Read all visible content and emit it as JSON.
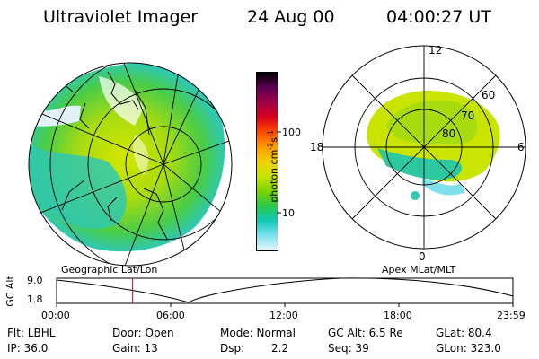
{
  "header": {
    "instrument": "Ultraviolet Imager",
    "date": "24 Aug 00",
    "time": "04:00:27 UT"
  },
  "geo_panel": {
    "label": "Geographic Lat/Lon"
  },
  "polar_panel": {
    "label": "Apex MLat/MLT",
    "mlt_labels": [
      "12",
      "18",
      "6",
      "0"
    ],
    "lat_labels": [
      "60",
      "70",
      "80"
    ]
  },
  "colorbar": {
    "unit_label": "photon cm",
    "unit_exp1": "-2",
    "unit_mid": "s",
    "unit_exp2": "-1",
    "ticks": [
      "100",
      "10"
    ],
    "colors": [
      "#000000",
      "#5a0050",
      "#a0004a",
      "#d8001c",
      "#ff4a00",
      "#ff9a00",
      "#f0d000",
      "#c8e400",
      "#7cd400",
      "#2cc84c",
      "#10c8b8",
      "#80e0ee",
      "#e8f6fb"
    ]
  },
  "altitude_plot": {
    "y_axis_label": "GC Alt",
    "y_ticks": [
      "9.0",
      "1.8"
    ],
    "x_ticks": [
      "00:00",
      "06:00",
      "12:00",
      "18:00",
      "23:59"
    ],
    "marker_time_hours": 4.0
  },
  "status": {
    "flt": "Flt: LBHL",
    "ip": "IP: 36.0",
    "door": "Door: Open",
    "gain": "Gain: 13",
    "mode": "Mode: Normal",
    "dsp_label": "Dsp:",
    "dsp_value": "2.2",
    "gc_alt": "GC Alt: 6.5 Re",
    "seq": "Seq: 39",
    "glat": "GLat: 80.4",
    "glon": "GLon: 323.0"
  }
}
